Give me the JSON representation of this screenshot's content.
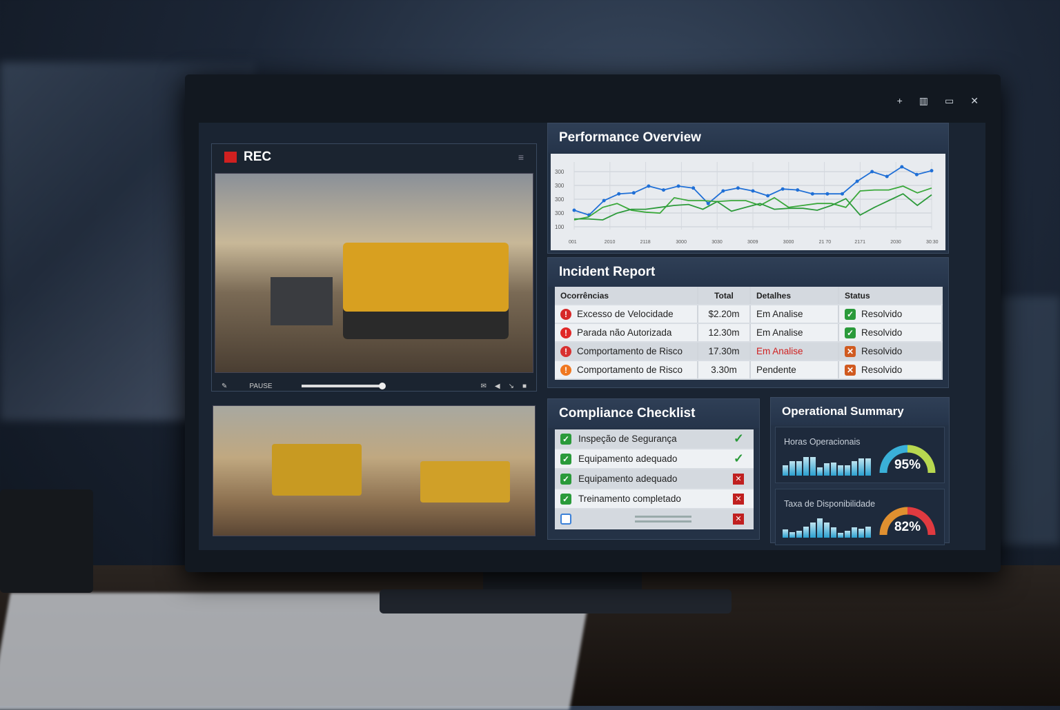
{
  "window": {
    "controls": [
      "+",
      "▥",
      "▭",
      "✕"
    ]
  },
  "video": {
    "rec_label": "REC",
    "control_label": "PAUSE",
    "progress": 0.85,
    "icons": [
      "pen-icon",
      "mail-icon",
      "prev-icon",
      "skip-icon",
      "stop-icon"
    ]
  },
  "performance": {
    "title": "Performance Overview"
  },
  "chart_data": {
    "type": "line",
    "title": "Performance Overview",
    "ylim": [
      0,
      100
    ],
    "y_ticks": [
      "300",
      "300",
      "300",
      "300",
      "100"
    ],
    "x_ticks": [
      "001",
      "2010",
      "2118",
      "3000",
      "3030",
      "3009",
      "3000",
      "21 70",
      "2171",
      "2030",
      "30:30"
    ],
    "series": [
      {
        "color": "#1f6fd6",
        "values": [
          45,
          40,
          55,
          62,
          63,
          70,
          66,
          70,
          68,
          52,
          65,
          68,
          65,
          60,
          67,
          66,
          62,
          62,
          62,
          75,
          85,
          80,
          90,
          82,
          86
        ]
      },
      {
        "color": "#3aa83a",
        "values": [
          35,
          38,
          48,
          52,
          45,
          43,
          42,
          58,
          55,
          55,
          54,
          55,
          55,
          50,
          58,
          48,
          50,
          52,
          52,
          48,
          65,
          66,
          66,
          70,
          63,
          68
        ]
      },
      {
        "color": "#2c9a3a",
        "values": [
          36,
          36,
          35,
          42,
          46,
          46,
          48,
          50,
          51,
          46,
          54,
          44,
          48,
          52,
          46,
          47,
          47,
          45,
          50,
          57,
          40,
          48,
          55,
          62,
          50,
          61
        ]
      }
    ],
    "grid": true
  },
  "incidents": {
    "title": "Incident Report",
    "headers": [
      "Ocorrências",
      "Total",
      "Detalhes",
      "Status"
    ],
    "rows": [
      {
        "name": "Excesso de Velocidade",
        "total": "$2.20m",
        "detail": "Em Analise",
        "status": "Resolvido",
        "icon": "warning-triangle-icon",
        "icolor": "#d62828",
        "ok": true,
        "red": false
      },
      {
        "name": "Parada não Autorizada",
        "total": "12.30m",
        "detail": "Em Analise",
        "status": "Resolvido",
        "icon": "stop-circle-icon",
        "icolor": "#e02828",
        "ok": true,
        "red": false
      },
      {
        "name": "Comportamento de Risco",
        "total": "17.30m",
        "detail": "Em Analise",
        "status": "Resolvido",
        "icon": "risk-icon",
        "icolor": "#d83030",
        "ok": false,
        "red": true
      },
      {
        "name": "Comportamento de Risco",
        "total": "3.30m",
        "detail": "Pendente",
        "status": "Resolvido",
        "icon": "alert-icon",
        "icolor": "#f07820",
        "ok": false,
        "red": false
      }
    ]
  },
  "compliance": {
    "title": "Compliance Checklist",
    "items": [
      {
        "label": "Inspeção de Segurança",
        "checked": true,
        "ok": true
      },
      {
        "label": "Equipamento adequado",
        "checked": true,
        "ok": true
      },
      {
        "label": "Equipamento adequado",
        "checked": true,
        "ok": false
      },
      {
        "label": "Treinamento completado",
        "checked": true,
        "ok": false
      },
      {
        "label": "",
        "checked": false,
        "ok": false
      }
    ]
  },
  "summary": {
    "title": "Operational Summary",
    "cards": [
      {
        "label": "Horas Operacionais",
        "value": "95%",
        "percent": 95,
        "bars": [
          50,
          70,
          70,
          90,
          90,
          40,
          60,
          65,
          50,
          50,
          70,
          85,
          82
        ],
        "colors": [
          "#3ab0d8",
          "#b8d850"
        ]
      },
      {
        "label": "Taxa de Disponibilidade",
        "value": "82%",
        "percent": 82,
        "bars": [
          40,
          28,
          35,
          55,
          75,
          95,
          72,
          50,
          25,
          35,
          50,
          45,
          55
        ],
        "colors": [
          "#e09030",
          "#e03a40"
        ]
      }
    ]
  }
}
